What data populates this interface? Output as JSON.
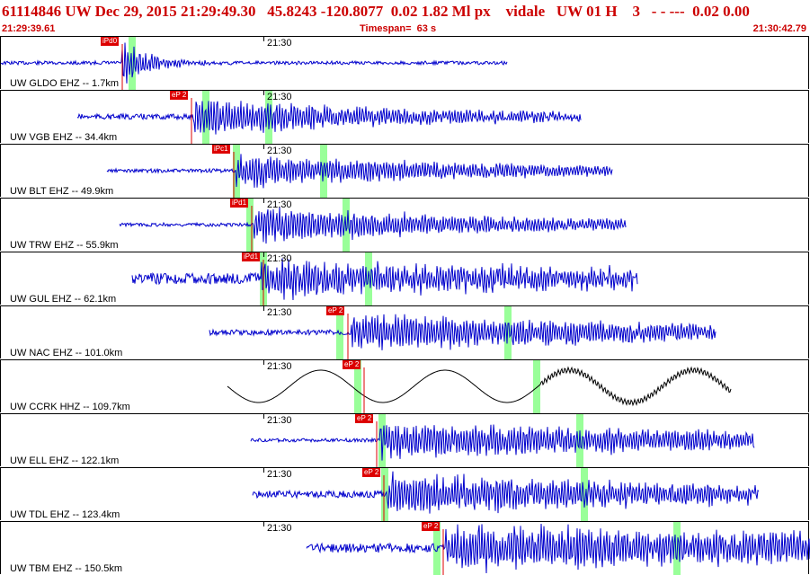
{
  "header": {
    "title": "61114846 UW Dec 29, 2015 21:29:49.30   45.8243 -120.8077  0.02 1.82 Ml px    vidale   UW 01 H    3   - - ---  0.02 0.00",
    "start_time": "21:29:39.61",
    "timespan": "Timespan=  63 s",
    "end_time": "21:30:42.79"
  },
  "colors": {
    "header_text": "#cc0000",
    "trace": "#0000cc",
    "trace_alt": "#000000",
    "pick": "#dd0000",
    "highlight": "#99ff99"
  },
  "traces": [
    {
      "label": "UW GLDO EHZ -- 1.7km",
      "time": "21:30",
      "pick": "iPd0",
      "color": "#0000cc"
    },
    {
      "label": "UW VGB EHZ -- 34.4km",
      "time": "21:30",
      "pick": "eP 2",
      "color": "#0000cc"
    },
    {
      "label": "UW BLT EHZ -- 49.9km",
      "time": "21:30",
      "pick": "iPc1",
      "color": "#0000cc"
    },
    {
      "label": "UW TRW EHZ -- 55.9km",
      "time": "21:30",
      "pick": "iPd1",
      "color": "#0000cc"
    },
    {
      "label": "UW GUL EHZ -- 62.1km",
      "time": "21:30",
      "pick": "iPd1",
      "color": "#0000cc"
    },
    {
      "label": "UW NAC EHZ -- 101.0km",
      "time": "21:30",
      "pick": "eP 2",
      "color": "#0000cc"
    },
    {
      "label": "UW CCRK HHZ -- 109.7km",
      "time": "21:30",
      "pick": "eP 2",
      "color": "#000000"
    },
    {
      "label": "UW ELL EHZ -- 122.1km",
      "time": "21:30",
      "pick": "eP 2",
      "color": "#0000cc"
    },
    {
      "label": "UW TDL EHZ -- 123.4km",
      "time": "21:30",
      "pick": "eP 2",
      "color": "#0000cc"
    },
    {
      "label": "UW TBM EHZ -- 150.5km",
      "time": "21:30",
      "pick": "eP 2",
      "color": "#0000cc"
    }
  ]
}
